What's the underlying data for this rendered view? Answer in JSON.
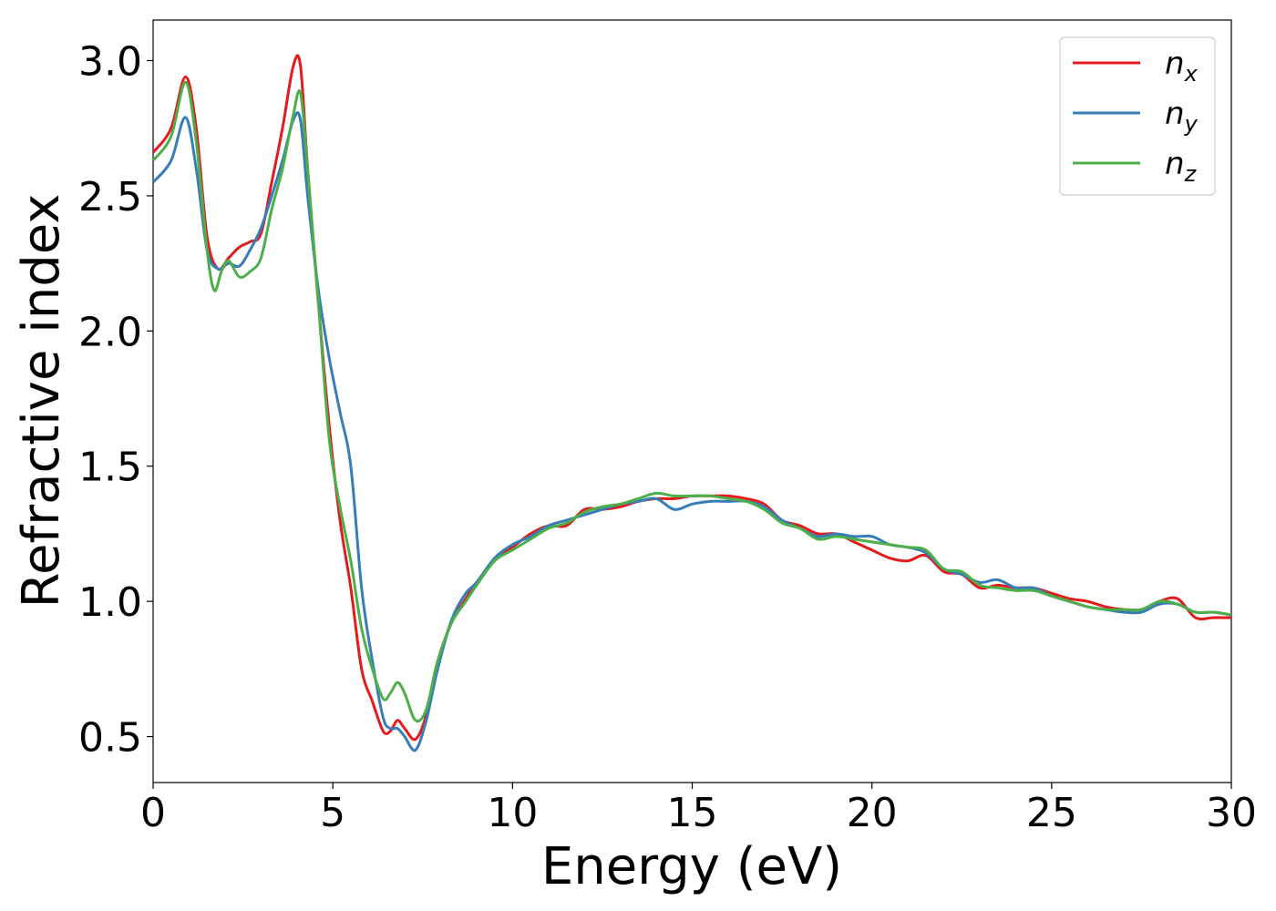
{
  "chart_data": {
    "type": "line",
    "xlabel": "Energy (eV)",
    "ylabel": "Refractive index",
    "xlim": [
      0,
      30
    ],
    "ylim": [
      0.33,
      3.15
    ],
    "xticks": [
      0,
      5,
      10,
      15,
      20,
      25,
      30
    ],
    "xtick_labels": [
      "0",
      "5",
      "10",
      "15",
      "20",
      "25",
      "30"
    ],
    "yticks": [
      0.5,
      1.0,
      1.5,
      2.0,
      2.5,
      3.0
    ],
    "ytick_labels": [
      "0.5",
      "1.0",
      "1.5",
      "2.0",
      "2.5",
      "3.0"
    ],
    "grid": false,
    "legend_position": "top-right",
    "series": [
      {
        "name": "n",
        "subscript": "x",
        "color": "#e41a1c",
        "x": [
          0,
          0.5,
          0.9,
          1.2,
          1.5,
          1.8,
          2.1,
          2.4,
          2.7,
          3.0,
          3.3,
          3.6,
          3.9,
          4.1,
          4.3,
          4.6,
          4.9,
          5.2,
          5.5,
          5.8,
          6.1,
          6.4,
          6.6,
          6.8,
          7.0,
          7.3,
          7.6,
          7.9,
          8.3,
          8.7,
          9.0,
          9.5,
          10,
          10.5,
          11,
          11.5,
          12,
          12.5,
          13,
          13.5,
          14,
          14.5,
          15,
          15.5,
          16,
          16.5,
          17,
          17.5,
          18,
          18.5,
          19,
          19.5,
          20,
          20.5,
          21,
          21.5,
          22,
          22.5,
          23,
          23.5,
          24,
          24.5,
          25,
          25.5,
          26,
          26.5,
          27,
          27.5,
          28,
          28.5,
          29,
          29.5,
          30
        ],
        "values": [
          2.66,
          2.75,
          2.94,
          2.75,
          2.35,
          2.23,
          2.27,
          2.31,
          2.33,
          2.36,
          2.55,
          2.75,
          2.98,
          2.98,
          2.6,
          2.1,
          1.65,
          1.3,
          1.05,
          0.75,
          0.63,
          0.52,
          0.52,
          0.56,
          0.53,
          0.49,
          0.58,
          0.77,
          0.92,
          1.01,
          1.07,
          1.15,
          1.2,
          1.25,
          1.28,
          1.28,
          1.34,
          1.34,
          1.35,
          1.37,
          1.38,
          1.38,
          1.39,
          1.39,
          1.39,
          1.38,
          1.36,
          1.3,
          1.28,
          1.25,
          1.25,
          1.22,
          1.19,
          1.16,
          1.15,
          1.17,
          1.11,
          1.1,
          1.05,
          1.06,
          1.05,
          1.05,
          1.03,
          1.01,
          1.0,
          0.98,
          0.97,
          0.97,
          1.0,
          1.01,
          0.94,
          0.94,
          0.94
        ]
      },
      {
        "name": "n",
        "subscript": "y",
        "color": "#377eb8",
        "x": [
          0,
          0.5,
          0.9,
          1.2,
          1.5,
          1.8,
          2.1,
          2.4,
          2.7,
          3.0,
          3.3,
          3.6,
          3.9,
          4.1,
          4.3,
          4.6,
          4.9,
          5.2,
          5.5,
          5.8,
          6.1,
          6.4,
          6.6,
          6.8,
          7.0,
          7.3,
          7.6,
          7.9,
          8.3,
          8.7,
          9.0,
          9.5,
          10,
          10.5,
          11,
          11.5,
          12,
          12.5,
          13,
          13.5,
          14,
          14.5,
          15,
          15.5,
          16,
          16.5,
          17,
          17.5,
          18,
          18.5,
          19,
          19.5,
          20,
          20.5,
          21,
          21.5,
          22,
          22.5,
          23,
          23.5,
          24,
          24.5,
          25,
          25.5,
          26,
          26.5,
          27,
          27.5,
          28,
          28.5,
          29,
          29.5,
          30
        ],
        "values": [
          2.55,
          2.63,
          2.79,
          2.6,
          2.3,
          2.23,
          2.25,
          2.24,
          2.3,
          2.38,
          2.5,
          2.63,
          2.78,
          2.78,
          2.5,
          2.15,
          1.9,
          1.7,
          1.5,
          1.05,
          0.78,
          0.57,
          0.53,
          0.53,
          0.5,
          0.45,
          0.56,
          0.74,
          0.93,
          1.03,
          1.07,
          1.16,
          1.21,
          1.24,
          1.28,
          1.3,
          1.32,
          1.34,
          1.36,
          1.37,
          1.38,
          1.34,
          1.36,
          1.37,
          1.37,
          1.37,
          1.35,
          1.3,
          1.27,
          1.24,
          1.25,
          1.24,
          1.24,
          1.21,
          1.2,
          1.18,
          1.12,
          1.1,
          1.07,
          1.08,
          1.05,
          1.05,
          1.02,
          1.0,
          0.98,
          0.97,
          0.96,
          0.96,
          0.99,
          0.99,
          0.96,
          0.96,
          0.95
        ]
      },
      {
        "name": "n",
        "subscript": "z",
        "color": "#4daf4a",
        "x": [
          0,
          0.5,
          0.9,
          1.2,
          1.5,
          1.7,
          1.9,
          2.1,
          2.4,
          2.7,
          3.0,
          3.3,
          3.6,
          3.9,
          4.1,
          4.3,
          4.6,
          4.9,
          5.2,
          5.5,
          5.8,
          6.1,
          6.4,
          6.6,
          6.8,
          7.0,
          7.3,
          7.6,
          7.9,
          8.3,
          8.7,
          9.0,
          9.5,
          10,
          10.5,
          11,
          11.5,
          12,
          12.5,
          13,
          13.5,
          14,
          14.5,
          15,
          15.5,
          16,
          16.5,
          17,
          17.5,
          18,
          18.5,
          19,
          19.5,
          20,
          20.5,
          21,
          21.5,
          22,
          22.5,
          23,
          23.5,
          24,
          24.5,
          25,
          25.5,
          26,
          26.5,
          27,
          27.5,
          28,
          28.5,
          29,
          29.5,
          30
        ],
        "values": [
          2.63,
          2.72,
          2.92,
          2.7,
          2.3,
          2.15,
          2.22,
          2.26,
          2.2,
          2.22,
          2.27,
          2.45,
          2.6,
          2.8,
          2.88,
          2.6,
          2.1,
          1.6,
          1.35,
          1.15,
          0.9,
          0.75,
          0.64,
          0.66,
          0.7,
          0.66,
          0.56,
          0.6,
          0.77,
          0.92,
          1.0,
          1.06,
          1.15,
          1.19,
          1.23,
          1.27,
          1.29,
          1.33,
          1.35,
          1.36,
          1.38,
          1.4,
          1.39,
          1.39,
          1.39,
          1.38,
          1.37,
          1.34,
          1.29,
          1.27,
          1.23,
          1.24,
          1.23,
          1.22,
          1.21,
          1.2,
          1.19,
          1.12,
          1.11,
          1.06,
          1.05,
          1.04,
          1.04,
          1.02,
          1.0,
          0.98,
          0.97,
          0.97,
          0.97,
          1.0,
          0.99,
          0.96,
          0.96,
          0.95
        ]
      }
    ]
  }
}
